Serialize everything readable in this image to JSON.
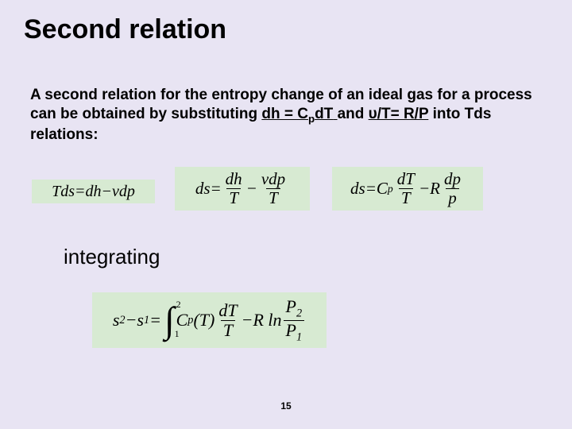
{
  "title": "Second relation",
  "paragraph": {
    "part1": "A second relation for the entropy change of an ideal gas for a process can be obtained by substituting ",
    "rel1_pre": "dh = C",
    "rel1_sub": "p",
    "rel1_post": "dT",
    "and": " and  ",
    "rel2": "υ/T= R/P",
    "part2": " into Tds relations:"
  },
  "eq1": {
    "lhs": "Tds",
    "eq": " = ",
    "r1": "dh",
    "minus": " − ",
    "r2": "vdp"
  },
  "eq2": {
    "lhs": "ds",
    "eq": " = ",
    "f1_num": "dh",
    "f1_den": "T",
    "minus": " − ",
    "f2_num": "vdp",
    "f2_den": "T"
  },
  "eq3": {
    "lhs": "ds",
    "eq": " = ",
    "cp_c": "C",
    "cp_p": "p",
    "f1_num": "dT",
    "f1_den": "T",
    "minus": " − ",
    "R": "R",
    "f2_num": "dp",
    "f2_den": "p"
  },
  "integrating_label": "integrating",
  "eq4": {
    "s": "s",
    "two": "2",
    "one": "1",
    "minus": " − ",
    "eq": " = ",
    "int_top": "2",
    "int_bot": "1",
    "cp_c": "C",
    "cp_p": "p",
    "paren_open": "(",
    "T": "T",
    "paren_close": ")",
    "f1_num": "dT",
    "f1_den": "T",
    "Rln": "R ln",
    "P": "P"
  },
  "page_number": "15",
  "colors": {
    "background": "#e8e4f3",
    "equation_bg": "#d7ead2",
    "text": "#000000"
  }
}
